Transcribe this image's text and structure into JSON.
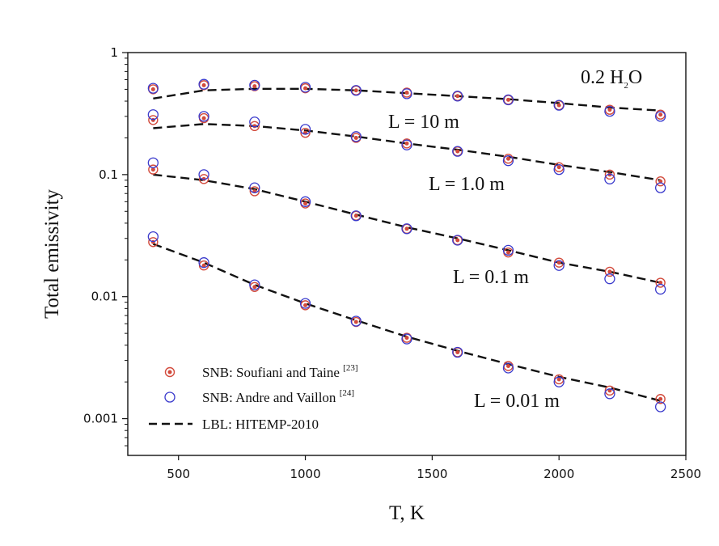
{
  "chart_data": {
    "type": "scatter",
    "title": "",
    "xlabel": "T, K",
    "ylabel": "Total emissivity",
    "xlim": [
      300,
      2500
    ],
    "ylim": [
      0.0005,
      1
    ],
    "yscale": "log",
    "grid": false,
    "legend_position": "bottom-left",
    "x_tick_labels": [
      "500",
      "1000",
      "1500",
      "2000",
      "2500"
    ],
    "x_ticks": [
      500,
      1000,
      1500,
      2000,
      2500
    ],
    "y_tick_labels": [
      "1",
      "0.1",
      "0.01",
      "0.001"
    ],
    "y_ticks": [
      1,
      0.1,
      0.01,
      0.001
    ],
    "species_label": {
      "main": "0.2 H",
      "sub": "2",
      "tail": "O"
    },
    "x": [
      400,
      600,
      800,
      1000,
      1200,
      1400,
      1600,
      1800,
      2000,
      2200,
      2400
    ],
    "groups": [
      {
        "label": "L = 10 m",
        "lbl": [
          0.42,
          0.49,
          0.505,
          0.505,
          0.49,
          0.465,
          0.44,
          0.415,
          0.385,
          0.355,
          0.335
        ],
        "soufiani": [
          0.5,
          0.54,
          0.53,
          0.51,
          0.49,
          0.47,
          0.44,
          0.41,
          0.37,
          0.34,
          0.31
        ],
        "andre": [
          0.51,
          0.55,
          0.54,
          0.52,
          0.49,
          0.46,
          0.44,
          0.41,
          0.37,
          0.33,
          0.3
        ]
      },
      {
        "label": "L = 1.0 m",
        "lbl": [
          0.24,
          0.26,
          0.25,
          0.23,
          0.205,
          0.18,
          0.16,
          0.14,
          0.12,
          0.105,
          0.09
        ],
        "soufiani": [
          0.28,
          0.29,
          0.25,
          0.22,
          0.2,
          0.18,
          0.155,
          0.135,
          0.115,
          0.1,
          0.088
        ],
        "andre": [
          0.31,
          0.3,
          0.27,
          0.235,
          0.205,
          0.175,
          0.155,
          0.13,
          0.11,
          0.092,
          0.078
        ]
      },
      {
        "label": "L = 0.1 m",
        "lbl": [
          0.1,
          0.09,
          0.076,
          0.06,
          0.047,
          0.037,
          0.03,
          0.024,
          0.019,
          0.016,
          0.013
        ],
        "soufiani": [
          0.11,
          0.092,
          0.073,
          0.058,
          0.046,
          0.036,
          0.029,
          0.023,
          0.019,
          0.016,
          0.013
        ],
        "andre": [
          0.125,
          0.1,
          0.078,
          0.06,
          0.046,
          0.036,
          0.029,
          0.024,
          0.018,
          0.014,
          0.0115
        ]
      },
      {
        "label": "L = 0.01 m",
        "lbl": [
          0.027,
          0.019,
          0.0125,
          0.0088,
          0.0064,
          0.0047,
          0.0036,
          0.0028,
          0.0022,
          0.0018,
          0.0014
        ],
        "soufiani": [
          0.028,
          0.018,
          0.012,
          0.0085,
          0.0062,
          0.0046,
          0.0035,
          0.0027,
          0.0021,
          0.0017,
          0.00145
        ],
        "andre": [
          0.031,
          0.019,
          0.0125,
          0.0088,
          0.0063,
          0.0045,
          0.0035,
          0.0026,
          0.002,
          0.0016,
          0.00125
        ]
      }
    ],
    "legend": [
      {
        "name": "SNB: Soufiani and Taine",
        "ref": "[23]",
        "marker": "filled-dot-circle",
        "color": "#d24a3c"
      },
      {
        "name": "SNB: Andre and Vaillon",
        "ref": "[24]",
        "marker": "open-circle",
        "color": "#3a3acc"
      },
      {
        "name": "LBL: HITEMP-2010",
        "ref": "",
        "marker": "dashed-line",
        "color": "#111111"
      }
    ]
  }
}
